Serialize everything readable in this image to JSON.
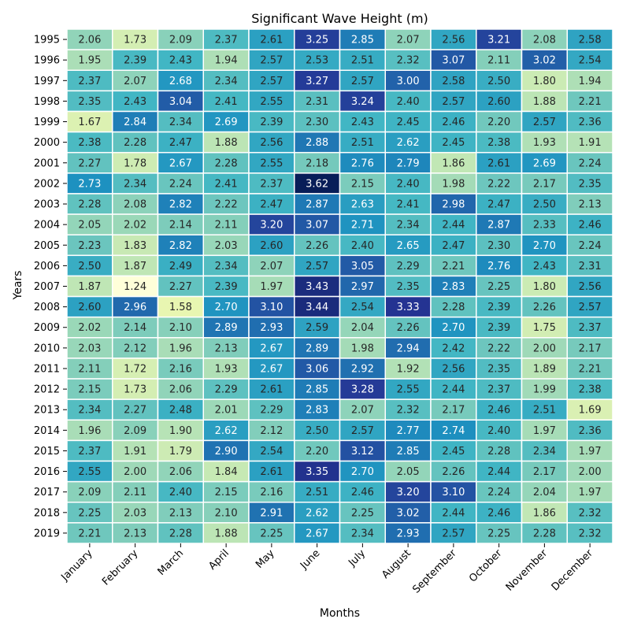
{
  "chart_data": {
    "type": "heatmap",
    "title": "Significant Wave Height (m)",
    "xlabel": "Months",
    "ylabel": "Years",
    "colormap": "YlGnBu",
    "value_range": [
      1.24,
      3.62
    ],
    "cell_text_dark": "#262626",
    "cell_text_light": "#ffffff",
    "months": [
      "January",
      "February",
      "March",
      "April",
      "May",
      "June",
      "July",
      "August",
      "September",
      "October",
      "November",
      "December"
    ],
    "years": [
      "1995",
      "1996",
      "1997",
      "1998",
      "1999",
      "2000",
      "2001",
      "2002",
      "2003",
      "2004",
      "2005",
      "2006",
      "2007",
      "2008",
      "2009",
      "2010",
      "2011",
      "2012",
      "2013",
      "2014",
      "2015",
      "2016",
      "2017",
      "2018",
      "2019"
    ],
    "values": [
      [
        2.06,
        1.73,
        2.09,
        2.37,
        2.61,
        3.25,
        2.85,
        2.07,
        2.56,
        3.21,
        2.08,
        2.58
      ],
      [
        1.95,
        2.39,
        2.43,
        1.94,
        2.57,
        2.53,
        2.51,
        2.32,
        3.07,
        2.11,
        3.02,
        2.54
      ],
      [
        2.37,
        2.07,
        2.68,
        2.34,
        2.57,
        3.27,
        2.57,
        3.0,
        2.58,
        2.5,
        1.8,
        1.94
      ],
      [
        2.35,
        2.43,
        3.04,
        2.41,
        2.55,
        2.31,
        3.24,
        2.4,
        2.57,
        2.6,
        1.88,
        2.21
      ],
      [
        1.67,
        2.84,
        2.34,
        2.69,
        2.39,
        2.3,
        2.43,
        2.45,
        2.46,
        2.2,
        2.57,
        2.36
      ],
      [
        2.38,
        2.28,
        2.47,
        1.88,
        2.56,
        2.88,
        2.51,
        2.62,
        2.45,
        2.38,
        1.93,
        1.91
      ],
      [
        2.27,
        1.78,
        2.67,
        2.28,
        2.55,
        2.18,
        2.76,
        2.79,
        1.86,
        2.61,
        2.69,
        2.24
      ],
      [
        2.73,
        2.34,
        2.24,
        2.41,
        2.37,
        3.62,
        2.15,
        2.4,
        1.98,
        2.22,
        2.17,
        2.35
      ],
      [
        2.28,
        2.08,
        2.82,
        2.22,
        2.47,
        2.87,
        2.63,
        2.41,
        2.98,
        2.47,
        2.5,
        2.13
      ],
      [
        2.05,
        2.02,
        2.14,
        2.11,
        3.2,
        3.07,
        2.71,
        2.34,
        2.44,
        2.87,
        2.33,
        2.46
      ],
      [
        2.23,
        1.83,
        2.82,
        2.03,
        2.6,
        2.26,
        2.4,
        2.65,
        2.47,
        2.3,
        2.7,
        2.24
      ],
      [
        2.5,
        1.87,
        2.49,
        2.34,
        2.07,
        2.57,
        3.05,
        2.29,
        2.21,
        2.76,
        2.43,
        2.31
      ],
      [
        1.87,
        1.24,
        2.27,
        2.39,
        1.97,
        3.43,
        2.97,
        2.35,
        2.83,
        2.25,
        1.8,
        2.56
      ],
      [
        2.6,
        2.96,
        1.58,
        2.7,
        3.1,
        3.44,
        2.54,
        3.33,
        2.28,
        2.39,
        2.26,
        2.57
      ],
      [
        2.02,
        2.14,
        2.1,
        2.89,
        2.93,
        2.59,
        2.04,
        2.26,
        2.7,
        2.39,
        1.75,
        2.37
      ],
      [
        2.03,
        2.12,
        1.96,
        2.13,
        2.67,
        2.89,
        1.98,
        2.94,
        2.42,
        2.22,
        2.0,
        2.17
      ],
      [
        2.11,
        1.72,
        2.16,
        1.93,
        2.67,
        3.06,
        2.92,
        1.92,
        2.56,
        2.35,
        1.89,
        2.21
      ],
      [
        2.15,
        1.73,
        2.06,
        2.29,
        2.61,
        2.85,
        3.28,
        2.55,
        2.44,
        2.37,
        1.99,
        2.38
      ],
      [
        2.34,
        2.27,
        2.48,
        2.01,
        2.29,
        2.83,
        2.07,
        2.32,
        2.17,
        2.46,
        2.51,
        1.69
      ],
      [
        1.96,
        2.09,
        1.9,
        2.62,
        2.12,
        2.5,
        2.57,
        2.77,
        2.74,
        2.4,
        1.97,
        2.36
      ],
      [
        2.37,
        1.91,
        1.79,
        2.9,
        2.54,
        2.2,
        3.12,
        2.85,
        2.45,
        2.28,
        2.34,
        1.97
      ],
      [
        2.55,
        2.0,
        2.06,
        1.84,
        2.61,
        3.35,
        2.7,
        2.05,
        2.26,
        2.44,
        2.17,
        2.0
      ],
      [
        2.09,
        2.11,
        2.4,
        2.15,
        2.16,
        2.51,
        2.46,
        3.2,
        3.1,
        2.24,
        2.04,
        1.97
      ],
      [
        2.25,
        2.03,
        2.13,
        2.1,
        2.91,
        2.62,
        2.25,
        3.02,
        2.44,
        2.46,
        1.86,
        2.32
      ],
      [
        2.21,
        2.13,
        2.28,
        1.88,
        2.25,
        2.67,
        2.34,
        2.93,
        2.57,
        2.25,
        2.28,
        2.32
      ]
    ]
  }
}
